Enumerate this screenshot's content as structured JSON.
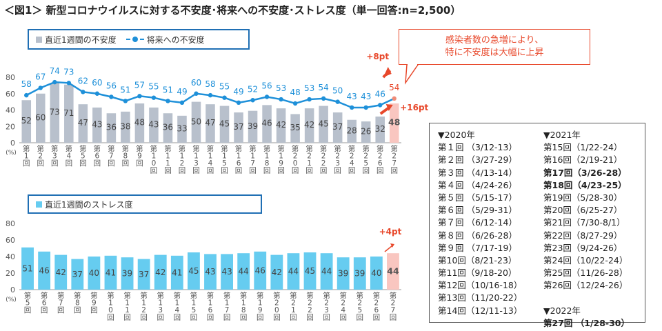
{
  "title": "＜図1＞ 新型コロナウイルスに対する不安度･将来への不安度･ストレス度（単一回答:n=2,500）",
  "legend_top": {
    "bar_label": "直近1週間の不安度",
    "line_label": "将来への不安度"
  },
  "legend_bottom": {
    "bar_label": "直近1週間のストレス度"
  },
  "callout": {
    "line1": "感染者数の急増により、",
    "line2": "特に不安度は大幅に上昇"
  },
  "unit_label": "(%)",
  "annotations": {
    "line_delta": "+8pt",
    "bar_delta": "+16pt",
    "stress_delta": "+4pt"
  },
  "colors": {
    "bar_gray": "#b8c0cc",
    "bar_blue": "#66ccf0",
    "line": "#1e90d9",
    "highlight_bar": "#f9c6c0",
    "accent": "#e8482b"
  },
  "chart_data": [
    {
      "type": "bar",
      "categories": [
        "第1回",
        "第2回",
        "第3回",
        "第4回",
        "第5回",
        "第6回",
        "第7回",
        "第8回",
        "第9回",
        "第10回",
        "第11回",
        "第12回",
        "第13回",
        "第14回",
        "第15回",
        "第16回",
        "第17回",
        "第18回",
        "第19回",
        "第20回",
        "第21回",
        "第22回",
        "第23回",
        "第24回",
        "第25回",
        "第26回",
        "第27回"
      ],
      "series": [
        {
          "name": "直近1週間の不安度",
          "kind": "bar",
          "values": [
            52,
            60,
            73,
            71,
            47,
            43,
            36,
            38,
            48,
            43,
            36,
            33,
            50,
            47,
            45,
            37,
            39,
            46,
            42,
            35,
            42,
            45,
            37,
            28,
            26,
            32,
            48
          ]
        },
        {
          "name": "将来への不安度",
          "kind": "line",
          "values": [
            58,
            67,
            74,
            73,
            62,
            60,
            56,
            51,
            57,
            55,
            51,
            49,
            60,
            58,
            55,
            49,
            52,
            56,
            53,
            48,
            53,
            54,
            50,
            43,
            43,
            46,
            54
          ]
        }
      ],
      "ylim": [
        0,
        80
      ],
      "yticks": [
        0,
        20,
        40,
        60,
        80
      ],
      "highlight_last": true
    },
    {
      "type": "bar",
      "categories": [
        "第5回",
        "第6回",
        "第7回",
        "第8回",
        "第9回",
        "第10回",
        "第11回",
        "第12回",
        "第13回",
        "第14回",
        "第15回",
        "第16回",
        "第17回",
        "第18回",
        "第19回",
        "第20回",
        "第21回",
        "第22回",
        "第23回",
        "第24回",
        "第25回",
        "第26回",
        "第27回"
      ],
      "series": [
        {
          "name": "直近1週間のストレス度",
          "kind": "bar",
          "values": [
            51,
            46,
            42,
            37,
            40,
            41,
            39,
            37,
            42,
            41,
            45,
            43,
            43,
            44,
            46,
            42,
            44,
            45,
            44,
            39,
            39,
            40,
            44
          ]
        }
      ],
      "ylim": [
        0,
        80
      ],
      "yticks": [
        0,
        20,
        40,
        60,
        80
      ],
      "highlight_last": true
    }
  ],
  "periods": {
    "col1": [
      {
        "text": "▼2020年",
        "bold": false
      },
      {
        "text": "第１回 （3/12-13）",
        "bold": false
      },
      {
        "text": "第２回 （3/27-29）",
        "bold": false
      },
      {
        "text": "第３回 （4/13-14）",
        "bold": false
      },
      {
        "text": "第４回 （4/24-26）",
        "bold": false
      },
      {
        "text": "第５回 （5/15-17）",
        "bold": false
      },
      {
        "text": "第６回 （5/29-31）",
        "bold": false
      },
      {
        "text": "第７回 （6/12-14）",
        "bold": false
      },
      {
        "text": "第８回 （6/26-28）",
        "bold": false
      },
      {
        "text": "第９回 （7/17-19）",
        "bold": false
      },
      {
        "text": "第10回（8/21-23）",
        "bold": false
      },
      {
        "text": "第11回（9/18-20）",
        "bold": false
      },
      {
        "text": "第12回（10/16-18）",
        "bold": false
      },
      {
        "text": "第13回（11/20-22）",
        "bold": false
      },
      {
        "text": "第14回（12/11-13）",
        "bold": false
      }
    ],
    "col2": [
      {
        "text": "▼2021年",
        "bold": false
      },
      {
        "text": "第15回（1/22-24）",
        "bold": false
      },
      {
        "text": "第16回（2/19-21）",
        "bold": false
      },
      {
        "text": "第17回（3/26-28）",
        "bold": true
      },
      {
        "text": "第18回（4/23-25）",
        "bold": true
      },
      {
        "text": "第19回（5/28-30）",
        "bold": false
      },
      {
        "text": "第20回（6/25-27）",
        "bold": false
      },
      {
        "text": "第21回（7/30-8/1）",
        "bold": false
      },
      {
        "text": "第22回（8/27-29）",
        "bold": false
      },
      {
        "text": "第23回（9/24-26）",
        "bold": false
      },
      {
        "text": "第24回（10/22-24）",
        "bold": false
      },
      {
        "text": "第25回（11/26-28）",
        "bold": false
      },
      {
        "text": "第26回（12/24-26）",
        "bold": false
      },
      {
        "text": "",
        "bold": false
      },
      {
        "text": "▼2022年",
        "bold": false
      },
      {
        "text": "第27回 （1/28-30）",
        "bold": true
      }
    ]
  }
}
